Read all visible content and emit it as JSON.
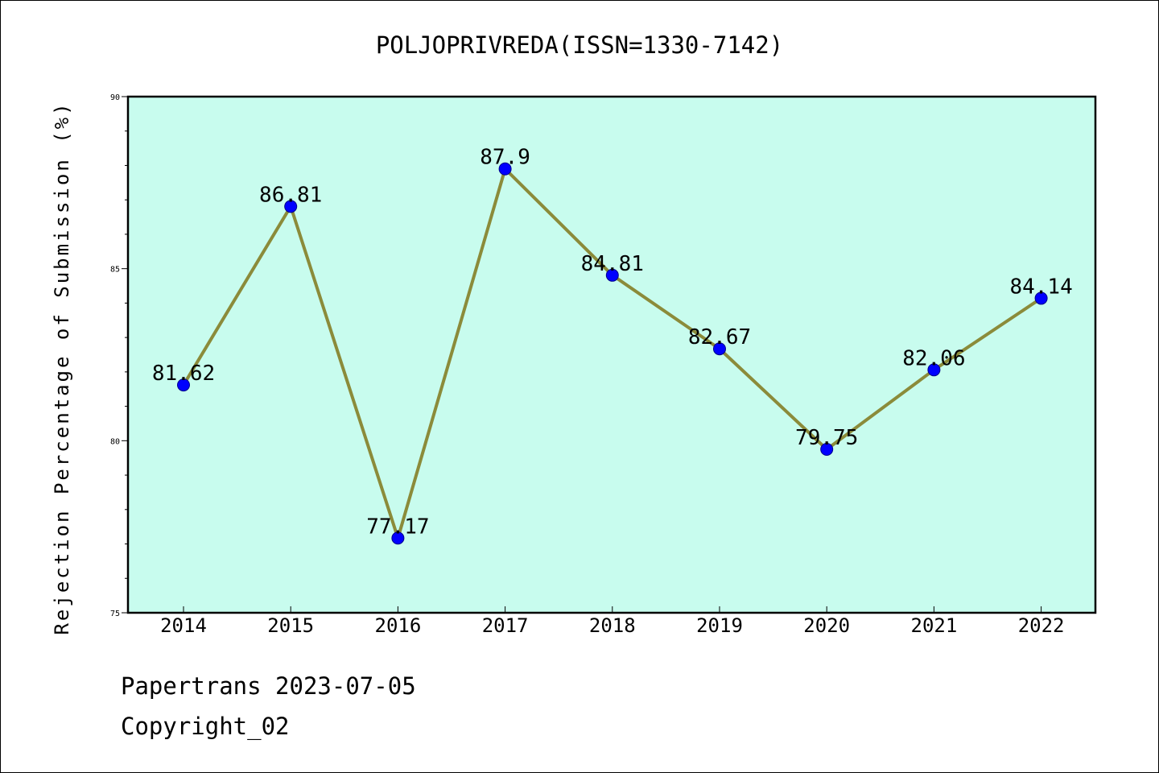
{
  "chart_data": {
    "type": "line",
    "title": "POLJOPRIVREDA(ISSN=1330-7142)",
    "ylabel": "Rejection Percentage of Submission (%)",
    "xlabel": "",
    "categories": [
      "2014",
      "2015",
      "2016",
      "2017",
      "2018",
      "2019",
      "2020",
      "2021",
      "2022"
    ],
    "series": [
      {
        "values": [
          81.62,
          86.81,
          77.17,
          87.9,
          84.81,
          82.67,
          79.75,
          82.06,
          84.14
        ],
        "data_labels": [
          "81.62",
          "86.81",
          "77.17",
          "87.9",
          "84.81",
          "82.67",
          "79.75",
          "82.06",
          "84.14"
        ]
      }
    ],
    "ylim": [
      75,
      90
    ],
    "yticks": [
      75,
      80,
      85,
      90
    ],
    "ytick_labels": [
      "75",
      "80",
      "85",
      "90"
    ],
    "grid": false,
    "colors": {
      "plot_background": "#c8fcee",
      "line": "#8b8b3a",
      "marker": "#0000ff"
    }
  },
  "footer": {
    "source": "Papertrans 2023-07-05",
    "copyright": "Copyright_02"
  }
}
